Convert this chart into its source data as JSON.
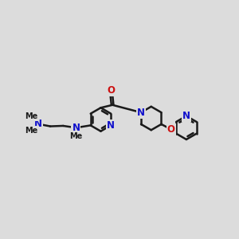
{
  "bg_color": "#dcdcdc",
  "bond_color": "#1a1a1a",
  "N_color": "#1010cc",
  "O_color": "#cc1010",
  "bond_width": 1.8,
  "font_size": 8.5,
  "fig_bg": "#dcdcdc",
  "xlim": [
    0,
    10
  ],
  "ylim": [
    2,
    8
  ]
}
